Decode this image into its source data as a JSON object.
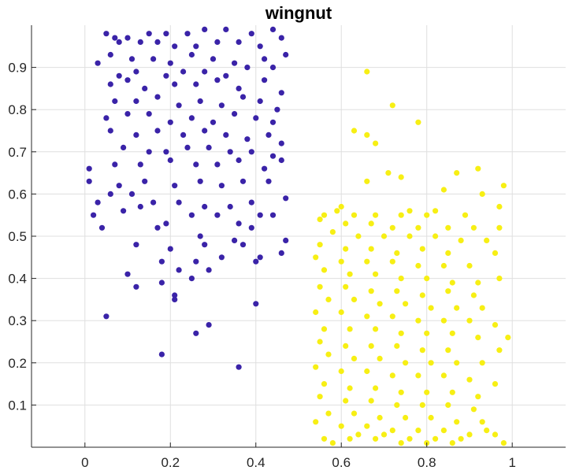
{
  "chart_data": {
    "type": "scatter",
    "title": "wingnut",
    "xlabel": "",
    "ylabel": "",
    "xlim": [
      -0.125,
      1.125
    ],
    "ylim": [
      0,
      1
    ],
    "x_ticks": [
      0,
      0.2,
      0.4,
      0.6,
      0.8,
      1
    ],
    "x_tick_labels": [
      "0",
      "0.2",
      "0.4",
      "0.6",
      "0.8",
      "1"
    ],
    "y_ticks": [
      0.1,
      0.2,
      0.3,
      0.4,
      0.5,
      0.6,
      0.7,
      0.8,
      0.9
    ],
    "y_tick_labels": [
      "0.1",
      "0.2",
      "0.3",
      "0.4",
      "0.5",
      "0.6",
      "0.7",
      "0.8",
      "0.9"
    ],
    "grid": true,
    "legend": "none",
    "colors": {
      "background": "#ffffff",
      "grid": "#dfdfdf",
      "axis": "#262626"
    },
    "series": [
      {
        "color": "#3a23a8",
        "points": [
          [
            0.05,
            0.98
          ],
          [
            0.07,
            0.97
          ],
          [
            0.1,
            0.97
          ],
          [
            0.15,
            0.98
          ],
          [
            0.19,
            0.98
          ],
          [
            0.24,
            0.98
          ],
          [
            0.28,
            0.99
          ],
          [
            0.33,
            0.99
          ],
          [
            0.39,
            0.98
          ],
          [
            0.44,
            0.99
          ],
          [
            0.08,
            0.96
          ],
          [
            0.13,
            0.96
          ],
          [
            0.17,
            0.96
          ],
          [
            0.21,
            0.95
          ],
          [
            0.26,
            0.95
          ],
          [
            0.31,
            0.96
          ],
          [
            0.36,
            0.96
          ],
          [
            0.41,
            0.95
          ],
          [
            0.46,
            0.97
          ],
          [
            0.06,
            0.93
          ],
          [
            0.11,
            0.92
          ],
          [
            0.16,
            0.92
          ],
          [
            0.2,
            0.91
          ],
          [
            0.25,
            0.93
          ],
          [
            0.3,
            0.92
          ],
          [
            0.35,
            0.91
          ],
          [
            0.42,
            0.92
          ],
          [
            0.47,
            0.93
          ],
          [
            0.03,
            0.91
          ],
          [
            0.08,
            0.88
          ],
          [
            0.12,
            0.89
          ],
          [
            0.19,
            0.88
          ],
          [
            0.23,
            0.89
          ],
          [
            0.28,
            0.89
          ],
          [
            0.33,
            0.88
          ],
          [
            0.38,
            0.9
          ],
          [
            0.44,
            0.9
          ],
          [
            0.06,
            0.86
          ],
          [
            0.1,
            0.87
          ],
          [
            0.14,
            0.85
          ],
          [
            0.21,
            0.86
          ],
          [
            0.26,
            0.86
          ],
          [
            0.31,
            0.87
          ],
          [
            0.36,
            0.85
          ],
          [
            0.42,
            0.87
          ],
          [
            0.46,
            0.84
          ],
          [
            0.07,
            0.82
          ],
          [
            0.12,
            0.82
          ],
          [
            0.17,
            0.83
          ],
          [
            0.22,
            0.81
          ],
          [
            0.27,
            0.82
          ],
          [
            0.32,
            0.81
          ],
          [
            0.37,
            0.83
          ],
          [
            0.41,
            0.82
          ],
          [
            0.45,
            0.8
          ],
          [
            0.05,
            0.78
          ],
          [
            0.1,
            0.79
          ],
          [
            0.15,
            0.79
          ],
          [
            0.2,
            0.77
          ],
          [
            0.25,
            0.78
          ],
          [
            0.3,
            0.77
          ],
          [
            0.35,
            0.79
          ],
          [
            0.4,
            0.78
          ],
          [
            0.44,
            0.77
          ],
          [
            0.06,
            0.75
          ],
          [
            0.12,
            0.74
          ],
          [
            0.17,
            0.75
          ],
          [
            0.23,
            0.74
          ],
          [
            0.28,
            0.75
          ],
          [
            0.33,
            0.74
          ],
          [
            0.38,
            0.73
          ],
          [
            0.43,
            0.74
          ],
          [
            0.46,
            0.72
          ],
          [
            0.09,
            0.71
          ],
          [
            0.15,
            0.7
          ],
          [
            0.19,
            0.7
          ],
          [
            0.24,
            0.71
          ],
          [
            0.29,
            0.71
          ],
          [
            0.34,
            0.7
          ],
          [
            0.39,
            0.7
          ],
          [
            0.44,
            0.69
          ],
          [
            0.01,
            0.66
          ],
          [
            0.07,
            0.67
          ],
          [
            0.13,
            0.67
          ],
          [
            0.2,
            0.68
          ],
          [
            0.26,
            0.67
          ],
          [
            0.31,
            0.67
          ],
          [
            0.36,
            0.68
          ],
          [
            0.42,
            0.66
          ],
          [
            0.46,
            0.68
          ],
          [
            0.01,
            0.63
          ],
          [
            0.08,
            0.62
          ],
          [
            0.14,
            0.63
          ],
          [
            0.21,
            0.62
          ],
          [
            0.27,
            0.63
          ],
          [
            0.32,
            0.62
          ],
          [
            0.37,
            0.63
          ],
          [
            0.43,
            0.63
          ],
          [
            0.03,
            0.58
          ],
          [
            0.06,
            0.6
          ],
          [
            0.11,
            0.6
          ],
          [
            0.16,
            0.58
          ],
          [
            0.22,
            0.58
          ],
          [
            0.28,
            0.57
          ],
          [
            0.34,
            0.57
          ],
          [
            0.39,
            0.58
          ],
          [
            0.47,
            0.59
          ],
          [
            0.02,
            0.55
          ],
          [
            0.09,
            0.56
          ],
          [
            0.13,
            0.57
          ],
          [
            0.19,
            0.53
          ],
          [
            0.25,
            0.55
          ],
          [
            0.31,
            0.55
          ],
          [
            0.36,
            0.53
          ],
          [
            0.41,
            0.55
          ],
          [
            0.44,
            0.55
          ],
          [
            0.04,
            0.52
          ],
          [
            0.17,
            0.52
          ],
          [
            0.27,
            0.5
          ],
          [
            0.35,
            0.49
          ],
          [
            0.39,
            0.52
          ],
          [
            0.47,
            0.49
          ],
          [
            0.12,
            0.48
          ],
          [
            0.2,
            0.47
          ],
          [
            0.28,
            0.48
          ],
          [
            0.37,
            0.48
          ],
          [
            0.41,
            0.45
          ],
          [
            0.46,
            0.46
          ],
          [
            0.18,
            0.44
          ],
          [
            0.26,
            0.44
          ],
          [
            0.32,
            0.45
          ],
          [
            0.4,
            0.44
          ],
          [
            0.22,
            0.42
          ],
          [
            0.29,
            0.42
          ],
          [
            0.1,
            0.41
          ],
          [
            0.25,
            0.4
          ],
          [
            0.18,
            0.39
          ],
          [
            0.12,
            0.38
          ],
          [
            0.21,
            0.35
          ],
          [
            0.21,
            0.36
          ],
          [
            0.4,
            0.34
          ],
          [
            0.05,
            0.31
          ],
          [
            0.29,
            0.29
          ],
          [
            0.26,
            0.27
          ],
          [
            0.18,
            0.22
          ],
          [
            0.36,
            0.19
          ]
        ]
      },
      {
        "color": "#f7ef14",
        "points": [
          [
            0.66,
            0.89
          ],
          [
            0.72,
            0.81
          ],
          [
            0.78,
            0.77
          ],
          [
            0.63,
            0.75
          ],
          [
            0.66,
            0.74
          ],
          [
            0.68,
            0.72
          ],
          [
            0.87,
            0.65
          ],
          [
            0.92,
            0.66
          ],
          [
            0.71,
            0.65
          ],
          [
            0.74,
            0.64
          ],
          [
            0.98,
            0.62
          ],
          [
            0.66,
            0.63
          ],
          [
            0.93,
            0.6
          ],
          [
            0.84,
            0.61
          ],
          [
            0.6,
            0.57
          ],
          [
            0.59,
            0.56
          ],
          [
            0.76,
            0.56
          ],
          [
            0.82,
            0.56
          ],
          [
            0.97,
            0.57
          ],
          [
            0.56,
            0.55
          ],
          [
            0.63,
            0.55
          ],
          [
            0.68,
            0.55
          ],
          [
            0.74,
            0.55
          ],
          [
            0.8,
            0.55
          ],
          [
            0.89,
            0.55
          ],
          [
            0.55,
            0.54
          ],
          [
            0.61,
            0.53
          ],
          [
            0.67,
            0.53
          ],
          [
            0.72,
            0.52
          ],
          [
            0.78,
            0.52
          ],
          [
            0.85,
            0.52
          ],
          [
            0.91,
            0.52
          ],
          [
            0.97,
            0.52
          ],
          [
            0.58,
            0.51
          ],
          [
            0.64,
            0.5
          ],
          [
            0.7,
            0.5
          ],
          [
            0.76,
            0.5
          ],
          [
            0.82,
            0.5
          ],
          [
            0.88,
            0.49
          ],
          [
            0.94,
            0.49
          ],
          [
            0.55,
            0.48
          ],
          [
            0.61,
            0.47
          ],
          [
            0.67,
            0.47
          ],
          [
            0.73,
            0.46
          ],
          [
            0.79,
            0.47
          ],
          [
            0.85,
            0.46
          ],
          [
            0.96,
            0.46
          ],
          [
            0.54,
            0.45
          ],
          [
            0.6,
            0.44
          ],
          [
            0.66,
            0.44
          ],
          [
            0.72,
            0.44
          ],
          [
            0.78,
            0.43
          ],
          [
            0.84,
            0.43
          ],
          [
            0.9,
            0.43
          ],
          [
            0.56,
            0.42
          ],
          [
            0.62,
            0.41
          ],
          [
            0.68,
            0.41
          ],
          [
            0.74,
            0.4
          ],
          [
            0.8,
            0.4
          ],
          [
            0.86,
            0.39
          ],
          [
            0.92,
            0.39
          ],
          [
            0.97,
            0.4
          ],
          [
            0.55,
            0.38
          ],
          [
            0.61,
            0.38
          ],
          [
            0.67,
            0.37
          ],
          [
            0.73,
            0.37
          ],
          [
            0.79,
            0.36
          ],
          [
            0.85,
            0.37
          ],
          [
            0.91,
            0.36
          ],
          [
            0.57,
            0.35
          ],
          [
            0.63,
            0.35
          ],
          [
            0.69,
            0.34
          ],
          [
            0.75,
            0.34
          ],
          [
            0.81,
            0.33
          ],
          [
            0.87,
            0.33
          ],
          [
            0.93,
            0.33
          ],
          [
            0.54,
            0.32
          ],
          [
            0.6,
            0.32
          ],
          [
            0.66,
            0.31
          ],
          [
            0.72,
            0.31
          ],
          [
            0.78,
            0.3
          ],
          [
            0.84,
            0.3
          ],
          [
            0.9,
            0.3
          ],
          [
            0.96,
            0.29
          ],
          [
            0.56,
            0.28
          ],
          [
            0.62,
            0.28
          ],
          [
            0.68,
            0.28
          ],
          [
            0.74,
            0.27
          ],
          [
            0.8,
            0.27
          ],
          [
            0.86,
            0.27
          ],
          [
            0.92,
            0.26
          ],
          [
            0.99,
            0.26
          ],
          [
            0.55,
            0.25
          ],
          [
            0.61,
            0.24
          ],
          [
            0.67,
            0.24
          ],
          [
            0.73,
            0.24
          ],
          [
            0.79,
            0.23
          ],
          [
            0.85,
            0.23
          ],
          [
            0.97,
            0.23
          ],
          [
            0.57,
            0.22
          ],
          [
            0.63,
            0.21
          ],
          [
            0.69,
            0.21
          ],
          [
            0.75,
            0.2
          ],
          [
            0.81,
            0.2
          ],
          [
            0.87,
            0.2
          ],
          [
            0.93,
            0.2
          ],
          [
            0.54,
            0.19
          ],
          [
            0.6,
            0.18
          ],
          [
            0.66,
            0.18
          ],
          [
            0.72,
            0.17
          ],
          [
            0.78,
            0.17
          ],
          [
            0.84,
            0.17
          ],
          [
            0.9,
            0.16
          ],
          [
            0.96,
            0.15
          ],
          [
            0.56,
            0.15
          ],
          [
            0.62,
            0.14
          ],
          [
            0.68,
            0.14
          ],
          [
            0.74,
            0.13
          ],
          [
            0.8,
            0.13
          ],
          [
            0.86,
            0.13
          ],
          [
            0.92,
            0.12
          ],
          [
            0.55,
            0.12
          ],
          [
            0.61,
            0.11
          ],
          [
            0.67,
            0.11
          ],
          [
            0.73,
            0.1
          ],
          [
            0.79,
            0.1
          ],
          [
            0.85,
            0.1
          ],
          [
            0.91,
            0.09
          ],
          [
            0.57,
            0.08
          ],
          [
            0.63,
            0.08
          ],
          [
            0.69,
            0.07
          ],
          [
            0.75,
            0.07
          ],
          [
            0.81,
            0.07
          ],
          [
            0.87,
            0.06
          ],
          [
            0.93,
            0.06
          ],
          [
            0.54,
            0.06
          ],
          [
            0.6,
            0.05
          ],
          [
            0.66,
            0.05
          ],
          [
            0.72,
            0.04
          ],
          [
            0.78,
            0.04
          ],
          [
            0.84,
            0.04
          ],
          [
            0.9,
            0.03
          ],
          [
            0.96,
            0.03
          ],
          [
            0.56,
            0.02
          ],
          [
            0.62,
            0.02
          ],
          [
            0.68,
            0.02
          ],
          [
            0.74,
            0.01
          ],
          [
            0.8,
            0.01
          ],
          [
            0.86,
            0.01
          ],
          [
            0.98,
            0.01
          ],
          [
            0.58,
            0.01
          ],
          [
            0.64,
            0.03
          ],
          [
            0.7,
            0.03
          ],
          [
            0.76,
            0.02
          ],
          [
            0.82,
            0.02
          ],
          [
            0.88,
            0.02
          ],
          [
            0.94,
            0.04
          ]
        ]
      }
    ]
  }
}
